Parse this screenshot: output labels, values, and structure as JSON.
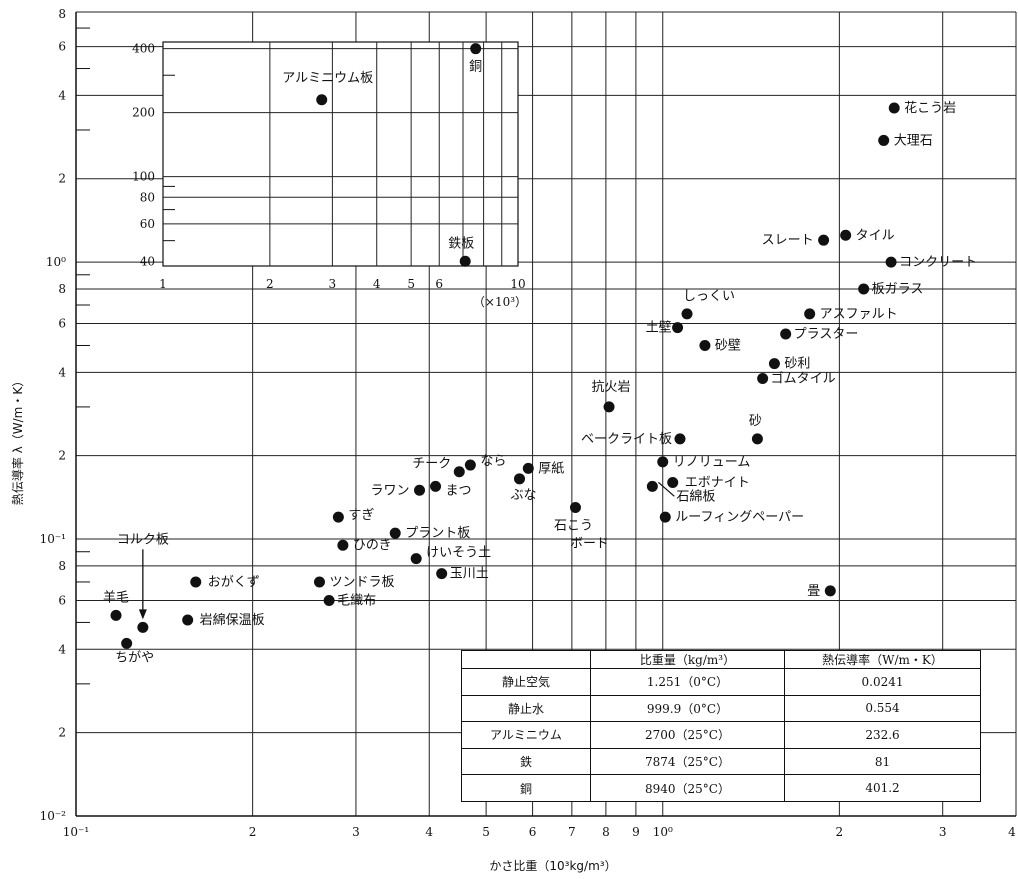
{
  "chart_data": [
    {
      "type": "scatter",
      "xlabel": "かさ比重（10³kg/m³）",
      "ylabel": "熱伝導率 λ（W/m・K）",
      "x_scale": "log",
      "y_scale": "log",
      "xlim": [
        0.1,
        4
      ],
      "ylim": [
        0.01,
        8
      ],
      "grid": true,
      "x_tick_labels": [
        "10⁻¹",
        "2",
        "3",
        "4",
        "5",
        "6",
        "7",
        "8",
        "9",
        "10⁰",
        "2",
        "3",
        "4"
      ],
      "y_tick_labels": [
        "10⁻²",
        "2",
        "4",
        "6",
        "8",
        "10⁻¹",
        "2",
        "4",
        "6",
        "8",
        "10⁰",
        "2",
        "4",
        "6",
        "8"
      ],
      "points": [
        {
          "label": "花こう岩",
          "x": 2.48,
          "y": 3.6
        },
        {
          "label": "大理石",
          "x": 2.38,
          "y": 2.75
        },
        {
          "label": "スレート",
          "x": 1.88,
          "y": 1.2
        },
        {
          "label": "タイル",
          "x": 2.05,
          "y": 1.25
        },
        {
          "label": "コンクリート",
          "x": 2.45,
          "y": 1.0
        },
        {
          "label": "板ガラス",
          "x": 2.2,
          "y": 0.8
        },
        {
          "label": "アスファルト",
          "x": 1.78,
          "y": 0.65
        },
        {
          "label": "プラスター",
          "x": 1.62,
          "y": 0.55
        },
        {
          "label": "しっくい",
          "x": 1.1,
          "y": 0.65
        },
        {
          "label": "土壁",
          "x": 1.06,
          "y": 0.58
        },
        {
          "label": "砂壁",
          "x": 1.18,
          "y": 0.5
        },
        {
          "label": "砂利",
          "x": 1.55,
          "y": 0.43
        },
        {
          "label": "ゴムタイル",
          "x": 1.48,
          "y": 0.38
        },
        {
          "label": "抗火岩",
          "x": 0.81,
          "y": 0.3
        },
        {
          "label": "砂",
          "x": 1.45,
          "y": 0.23
        },
        {
          "label": "ベークライト板",
          "x": 1.07,
          "y": 0.23
        },
        {
          "label": "リノリューム",
          "x": 1.0,
          "y": 0.19
        },
        {
          "label": "エボナイト",
          "x": 1.04,
          "y": 0.16
        },
        {
          "label": "石綿板",
          "x": 0.96,
          "y": 0.155
        },
        {
          "label": "ルーフィングペーパー",
          "x": 1.01,
          "y": 0.12
        },
        {
          "label": "厚紙",
          "x": 0.59,
          "y": 0.18
        },
        {
          "label": "ぶな",
          "x": 0.57,
          "y": 0.165
        },
        {
          "label": "石こうボード",
          "x": 0.71,
          "y": 0.13
        },
        {
          "label": "なら",
          "x": 0.47,
          "y": 0.185
        },
        {
          "label": "チーク",
          "x": 0.45,
          "y": 0.175
        },
        {
          "label": "まつ",
          "x": 0.41,
          "y": 0.155
        },
        {
          "label": "ラワン",
          "x": 0.385,
          "y": 0.15
        },
        {
          "label": "すぎ",
          "x": 0.28,
          "y": 0.12
        },
        {
          "label": "ひのき",
          "x": 0.285,
          "y": 0.095
        },
        {
          "label": "プラント板",
          "x": 0.35,
          "y": 0.105
        },
        {
          "label": "けいそう土",
          "x": 0.38,
          "y": 0.085
        },
        {
          "label": "玉川土",
          "x": 0.42,
          "y": 0.075
        },
        {
          "label": "ツンドラ板",
          "x": 0.26,
          "y": 0.07
        },
        {
          "label": "毛織布",
          "x": 0.27,
          "y": 0.06
        },
        {
          "label": "おがくず",
          "x": 0.16,
          "y": 0.07
        },
        {
          "label": "岩綿保温板",
          "x": 0.155,
          "y": 0.051
        },
        {
          "label": "羊毛",
          "x": 0.117,
          "y": 0.053
        },
        {
          "label": "コルク板",
          "x": 0.13,
          "y": 0.048
        },
        {
          "label": "ちがや",
          "x": 0.122,
          "y": 0.042
        },
        {
          "label": "畳",
          "x": 1.93,
          "y": 0.065
        }
      ]
    },
    {
      "type": "scatter",
      "inset": true,
      "x_scale": "log",
      "y_scale": "log",
      "xlim": [
        1,
        10
      ],
      "ylim": [
        38,
        430
      ],
      "x_unit_label": "（×10³）",
      "grid": true,
      "x_tick_labels": [
        "1",
        "2",
        "3",
        "4",
        "5",
        "6",
        "10"
      ],
      "y_tick_labels": [
        "40",
        "60",
        "80",
        "100",
        "200",
        "400"
      ],
      "points": [
        {
          "label": "アルミニウム板",
          "x": 2.8,
          "y": 230
        },
        {
          "label": "銅",
          "x": 7.6,
          "y": 400
        },
        {
          "label": "鉄板",
          "x": 7.1,
          "y": 40
        }
      ]
    }
  ],
  "table": {
    "headers": [
      "",
      "比重量（kg/m³）",
      "熱伝導率（W/m・K）"
    ],
    "rows": [
      [
        "静止空気",
        "1.251（0°C）",
        "0.0241"
      ],
      [
        "静止水",
        "999.9（0°C）",
        "0.554"
      ],
      [
        "アルミニウム",
        "2700（25°C）",
        "232.6"
      ],
      [
        "鉄",
        "7874（25°C）",
        "81"
      ],
      [
        "銅",
        "8940（25°C）",
        "401.2"
      ]
    ]
  }
}
